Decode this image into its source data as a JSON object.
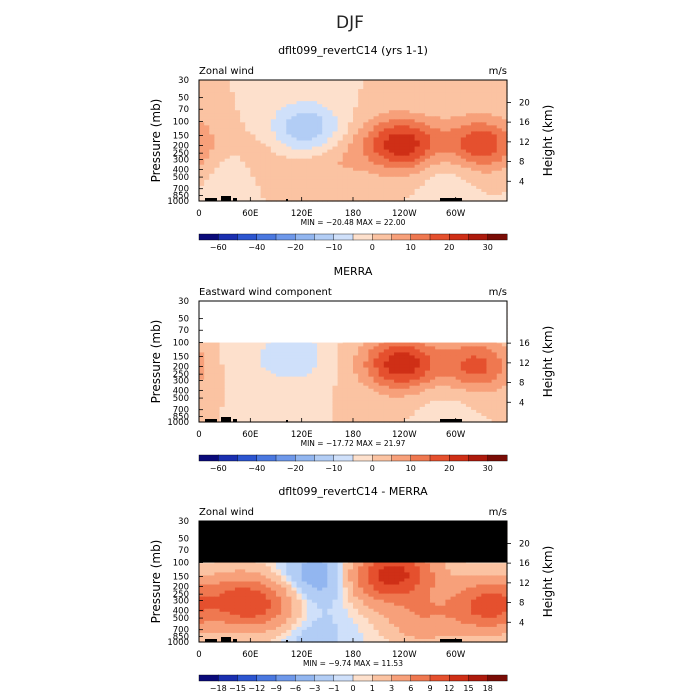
{
  "main_title": "DJF",
  "chart_data": [
    {
      "type": "heatmap",
      "title": "dflt099_revertC14 (yrs 1-1)",
      "left_label": "Zonal wind",
      "units": "m/s",
      "ylabel": "Pressure (mb)",
      "ylabel_right": "Height (km)",
      "x_ticks": [
        "0",
        "60E",
        "120E",
        "180",
        "120W",
        "60W"
      ],
      "y_ticks": [
        "30",
        "50",
        "70",
        "100",
        "150",
        "200",
        "250",
        "300",
        "400",
        "500",
        "700",
        "850",
        "1000"
      ],
      "y_right_ticks": [
        "20",
        "16",
        "12",
        "8",
        "4"
      ],
      "ylim_mb": [
        1000,
        30
      ],
      "minmax": "MIN = −20.48   MAX =  22.00",
      "min": -20.48,
      "max": 22.0,
      "masked_above_mb": null,
      "features": [
        {
          "kind": "jet",
          "lon": 35,
          "p": 350,
          "amp": -3
        },
        {
          "kind": "jet",
          "lon": 125,
          "p": 130,
          "amp": -16
        },
        {
          "kind": "jet",
          "lon": 210,
          "p": 175,
          "amp": 5
        },
        {
          "kind": "jet",
          "lon": 242,
          "p": 200,
          "amp": 21
        },
        {
          "kind": "jet",
          "lon": 330,
          "p": 200,
          "amp": 20
        },
        {
          "kind": "jet",
          "lon": 80,
          "p": 250,
          "amp": 4
        },
        {
          "kind": "jet",
          "lon": 150,
          "p": 300,
          "amp": 6
        },
        {
          "kind": "jet",
          "lon": 290,
          "p": 400,
          "amp": -5
        }
      ],
      "colorbar": {
        "labels": [
          "−60",
          "−40",
          "−20",
          "−10",
          "0",
          "10",
          "20",
          "30"
        ],
        "levels": [
          -70,
          -60,
          -50,
          -40,
          -30,
          -20,
          -15,
          -10,
          -5,
          0,
          5,
          10,
          15,
          20,
          25,
          30,
          35
        ]
      }
    },
    {
      "type": "heatmap",
      "title": "MERRA",
      "left_label": "Eastward wind component",
      "units": "m/s",
      "ylabel": "Pressure (mb)",
      "ylabel_right": "Height (km)",
      "x_ticks": [
        "0",
        "60E",
        "120E",
        "180",
        "120W",
        "60W"
      ],
      "y_ticks": [
        "30",
        "50",
        "70",
        "100",
        "150",
        "200",
        "250",
        "300",
        "400",
        "500",
        "700",
        "850",
        "1000"
      ],
      "y_right_ticks": [
        "16",
        "12",
        "8",
        "4"
      ],
      "ylim_mb": [
        1000,
        30
      ],
      "minmax": "MIN = −17.72   MAX =  21.97",
      "min": -17.72,
      "max": 21.97,
      "masked_above_mb": 100,
      "features": [
        {
          "kind": "jet",
          "lon": 110,
          "p": 150,
          "amp": -9
        },
        {
          "kind": "jet",
          "lon": 210,
          "p": 175,
          "amp": 4
        },
        {
          "kind": "jet",
          "lon": 240,
          "p": 190,
          "amp": 21
        },
        {
          "kind": "jet",
          "lon": 325,
          "p": 200,
          "amp": 17
        },
        {
          "kind": "jet",
          "lon": 40,
          "p": 200,
          "amp": -2
        },
        {
          "kind": "jet",
          "lon": 290,
          "p": 450,
          "amp": -3
        }
      ],
      "colorbar": {
        "labels": [
          "−60",
          "−40",
          "−20",
          "−10",
          "0",
          "10",
          "20",
          "30"
        ],
        "levels": [
          -70,
          -60,
          -50,
          -40,
          -30,
          -20,
          -15,
          -10,
          -5,
          0,
          5,
          10,
          15,
          20,
          25,
          30,
          35
        ]
      }
    },
    {
      "type": "heatmap",
      "title": "dflt099_revertC14 - MERRA",
      "left_label": "Zonal wind",
      "units": "m/s",
      "ylabel": "Pressure (mb)",
      "ylabel_right": "Height (km)",
      "x_ticks": [
        "0",
        "60E",
        "120E",
        "180",
        "120W",
        "60W"
      ],
      "y_ticks": [
        "30",
        "50",
        "70",
        "100",
        "150",
        "200",
        "250",
        "300",
        "400",
        "500",
        "700",
        "850",
        "1000"
      ],
      "y_right_ticks": [
        "20",
        "16",
        "12",
        "8",
        "4"
      ],
      "ylim_mb": [
        1000,
        30
      ],
      "minmax": "MIN = −9.74   MAX =  11.53",
      "min": -9.74,
      "max": 11.53,
      "masked_above_mb": 100,
      "features": [
        {
          "kind": "jet",
          "lon": 45,
          "p": 300,
          "amp": 8
        },
        {
          "kind": "jet",
          "lon": 80,
          "p": 350,
          "amp": 6
        },
        {
          "kind": "jet",
          "lon": 210,
          "p": 150,
          "amp": 9
        },
        {
          "kind": "jet",
          "lon": 245,
          "p": 130,
          "amp": 7
        },
        {
          "kind": "jet",
          "lon": 335,
          "p": 350,
          "amp": 10
        },
        {
          "kind": "jet",
          "lon": 140,
          "p": 150,
          "amp": -5
        },
        {
          "kind": "jet",
          "lon": 130,
          "p": 800,
          "amp": -2
        },
        {
          "kind": "jet",
          "lon": 260,
          "p": 500,
          "amp": 5
        }
      ],
      "colorbar": {
        "labels": [
          "−18",
          "−15",
          "−12",
          "−9",
          "−6",
          "−3",
          "−1",
          "0",
          "1",
          "3",
          "6",
          "9",
          "12",
          "15",
          "18"
        ],
        "levels": [
          -21,
          -18,
          -15,
          -12,
          -9,
          -6,
          -3,
          -1,
          0,
          1,
          3,
          6,
          9,
          12,
          15,
          18,
          21
        ]
      }
    }
  ]
}
